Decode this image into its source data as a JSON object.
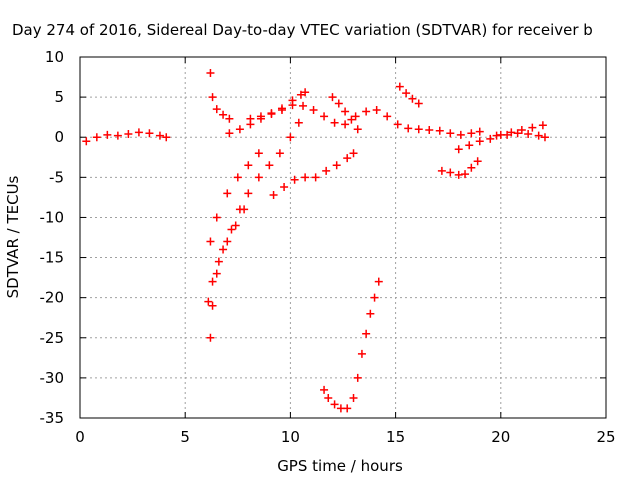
{
  "chart_data": {
    "type": "scatter",
    "title": "Day 274 of 2016, Sidereal Day-to-day VTEC variation (SDTVAR) for receiver b",
    "xlabel": "GPS time / hours",
    "ylabel": "SDTVAR / TECUs",
    "xlim": [
      0,
      25
    ],
    "ylim": [
      -35,
      10
    ],
    "xticks": [
      0,
      5,
      10,
      15,
      20,
      25
    ],
    "yticks": [
      10,
      5,
      0,
      -5,
      -10,
      -15,
      -20,
      -25,
      -30,
      -35
    ],
    "grid": true,
    "marker": "plus",
    "color": "#ff0000",
    "series": [
      {
        "x": [
          0.3,
          0.8,
          1.3,
          1.8,
          2.3,
          2.8,
          3.3,
          3.8,
          4.1
        ],
        "y": [
          -0.5,
          0.0,
          0.3,
          0.2,
          0.4,
          0.6,
          0.5,
          0.2,
          0.0
        ]
      },
      {
        "x": [
          6.2,
          6.3,
          6.5,
          6.8,
          7.1
        ],
        "y": [
          8.0,
          5.0,
          3.5,
          2.8,
          2.3
        ]
      },
      {
        "x": [
          6.2,
          6.5,
          7.0,
          7.5,
          8.0,
          8.5
        ],
        "y": [
          -13.0,
          -10.0,
          -7.0,
          -5.0,
          -3.5,
          -2.0
        ]
      },
      {
        "x": [
          6.1,
          6.3,
          6.6,
          7.0,
          7.4,
          7.8
        ],
        "y": [
          -20.5,
          -18.0,
          -15.5,
          -13.0,
          -11.0,
          -9.0
        ]
      },
      {
        "x": [
          6.2,
          6.3,
          6.5,
          6.8,
          7.2,
          7.6,
          8.0,
          8.5,
          9.0,
          9.5,
          10.0,
          10.4
        ],
        "y": [
          -25.0,
          -21.0,
          -17.0,
          -14.0,
          -11.5,
          -9.0,
          -7.0,
          -5.0,
          -3.5,
          -2.0,
          0.0,
          1.8
        ]
      },
      {
        "x": [
          7.1,
          7.6,
          8.1,
          8.6,
          9.1,
          9.6,
          10.1,
          10.5,
          10.7
        ],
        "y": [
          0.5,
          1.0,
          1.6,
          2.3,
          2.9,
          3.6,
          4.6,
          5.3,
          5.6
        ]
      },
      {
        "x": [
          8.1,
          8.6,
          9.1,
          9.6,
          10.1,
          10.6,
          11.1,
          11.6,
          12.1,
          12.6,
          13.1,
          13.6,
          14.1,
          14.6,
          15.1,
          15.6,
          16.1,
          16.6,
          17.1,
          17.6,
          18.1,
          18.6,
          19.0
        ],
        "y": [
          2.3,
          2.6,
          3.0,
          3.4,
          4.0,
          3.9,
          3.4,
          2.6,
          1.8,
          1.6,
          2.6,
          3.2,
          3.4,
          2.6,
          1.6,
          1.1,
          1.0,
          0.9,
          0.8,
          0.5,
          0.3,
          0.5,
          0.7
        ]
      },
      {
        "x": [
          12.0,
          12.3,
          12.6,
          12.9,
          13.2
        ],
        "y": [
          5.0,
          4.2,
          3.2,
          2.2,
          1.0
        ]
      },
      {
        "x": [
          15.2,
          15.5,
          15.8,
          16.1
        ],
        "y": [
          6.3,
          5.5,
          4.8,
          4.2
        ]
      },
      {
        "x": [
          9.2,
          9.7,
          10.2,
          10.7,
          11.2,
          11.7,
          12.2,
          12.7,
          13.0
        ],
        "y": [
          -7.2,
          -6.2,
          -5.3,
          -5.0,
          -5.0,
          -4.2,
          -3.5,
          -2.6,
          -2.0
        ]
      },
      {
        "x": [
          11.6,
          11.8,
          12.1,
          12.4,
          12.7,
          13.0,
          13.2,
          13.4,
          13.6,
          13.8,
          14.0,
          14.2
        ],
        "y": [
          -31.5,
          -32.5,
          -33.3,
          -33.8,
          -33.8,
          -32.5,
          -30.0,
          -27.0,
          -24.5,
          -22.0,
          -20.0,
          -18.0
        ]
      },
      {
        "x": [
          17.2,
          17.6,
          18.0,
          18.3,
          18.6,
          18.9
        ],
        "y": [
          -4.2,
          -4.4,
          -4.7,
          -4.6,
          -3.8,
          -3.0
        ]
      },
      {
        "x": [
          18.0,
          18.5,
          19.0,
          19.5,
          20.0,
          20.5,
          21.0,
          21.5,
          22.0
        ],
        "y": [
          -1.5,
          -1.0,
          -0.5,
          -0.2,
          0.3,
          0.6,
          0.9,
          1.2,
          1.5
        ]
      },
      {
        "x": [
          19.8,
          20.3,
          20.8,
          21.3,
          21.8,
          22.1
        ],
        "y": [
          0.2,
          0.3,
          0.5,
          0.4,
          0.2,
          0.0
        ]
      }
    ]
  }
}
